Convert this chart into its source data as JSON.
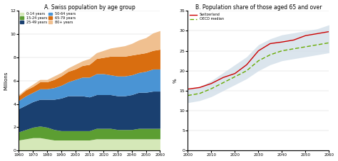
{
  "title_a": "A. Swiss population by age group",
  "title_b": "B. Population share of those aged 65 and over",
  "ylabel_a": "Millions",
  "ylabel_b": "%",
  "years_a": [
    1960,
    1965,
    1970,
    1975,
    1980,
    1985,
    1990,
    1995,
    2000,
    2005,
    2010,
    2015,
    2020,
    2025,
    2030,
    2035,
    2040,
    2045,
    2050,
    2055,
    2060
  ],
  "data_a": {
    "0-14 years": [
      0.9,
      1.0,
      1.1,
      1.1,
      1.0,
      0.9,
      0.9,
      0.9,
      0.9,
      0.9,
      0.9,
      1.0,
      1.0,
      1.0,
      1.0,
      1.0,
      1.0,
      1.0,
      1.0,
      1.0,
      1.0
    ],
    "15-24 years": [
      0.7,
      0.8,
      0.9,
      1.0,
      1.0,
      0.9,
      0.8,
      0.8,
      0.8,
      0.8,
      0.8,
      0.9,
      0.9,
      0.9,
      0.8,
      0.8,
      0.8,
      0.9,
      0.9,
      0.9,
      0.9
    ],
    "25-49 years": [
      2.0,
      2.1,
      2.2,
      2.3,
      2.4,
      2.6,
      2.8,
      3.0,
      3.0,
      3.0,
      2.9,
      2.9,
      2.9,
      2.9,
      2.9,
      2.9,
      3.0,
      3.1,
      3.1,
      3.2,
      3.2
    ],
    "50-64 years": [
      0.7,
      0.8,
      0.8,
      0.9,
      0.9,
      1.0,
      1.1,
      1.2,
      1.4,
      1.6,
      1.7,
      1.8,
      1.8,
      1.7,
      1.7,
      1.7,
      1.7,
      1.7,
      1.8,
      1.9,
      1.9
    ],
    "65-79 years": [
      0.4,
      0.5,
      0.5,
      0.6,
      0.6,
      0.7,
      0.8,
      0.9,
      0.9,
      1.0,
      1.1,
      1.3,
      1.4,
      1.6,
      1.7,
      1.7,
      1.7,
      1.6,
      1.6,
      1.6,
      1.7
    ],
    "80+ years": [
      0.1,
      0.1,
      0.2,
      0.2,
      0.2,
      0.3,
      0.3,
      0.3,
      0.4,
      0.4,
      0.5,
      0.5,
      0.6,
      0.7,
      0.8,
      0.9,
      1.0,
      1.2,
      1.3,
      1.5,
      1.6
    ]
  },
  "colors_a": {
    "0-14 years": "#d5e8b8",
    "15-24 years": "#5c9e32",
    "25-49 years": "#1a4070",
    "50-64 years": "#4a94d4",
    "65-79 years": "#d96e10",
    "80+ years": "#f0c090"
  },
  "years_b": [
    2000,
    2005,
    2010,
    2015,
    2020,
    2025,
    2030,
    2035,
    2040,
    2045,
    2050,
    2055,
    2060
  ],
  "switzerland": [
    15.4,
    15.8,
    16.8,
    18.3,
    19.3,
    21.5,
    25.0,
    26.8,
    27.2,
    27.7,
    28.8,
    29.3,
    29.8
  ],
  "oecd_median": [
    13.8,
    14.3,
    15.5,
    17.0,
    18.5,
    20.0,
    22.5,
    24.0,
    25.0,
    25.5,
    26.0,
    26.5,
    27.0
  ],
  "oecd_low": [
    12.0,
    12.5,
    13.5,
    15.0,
    16.5,
    18.0,
    20.0,
    21.5,
    22.5,
    23.0,
    23.5,
    24.0,
    24.5
  ],
  "oecd_high": [
    15.5,
    16.0,
    17.5,
    19.5,
    21.5,
    23.5,
    26.5,
    28.0,
    29.0,
    29.5,
    30.0,
    30.5,
    31.5
  ],
  "color_switzerland": "#cc0000",
  "color_oecd": "#66aa00",
  "color_band": "#d0dde8",
  "ylim_b": [
    0,
    35
  ],
  "yticks_b": [
    0,
    5,
    10,
    15,
    20,
    25,
    30,
    35
  ]
}
